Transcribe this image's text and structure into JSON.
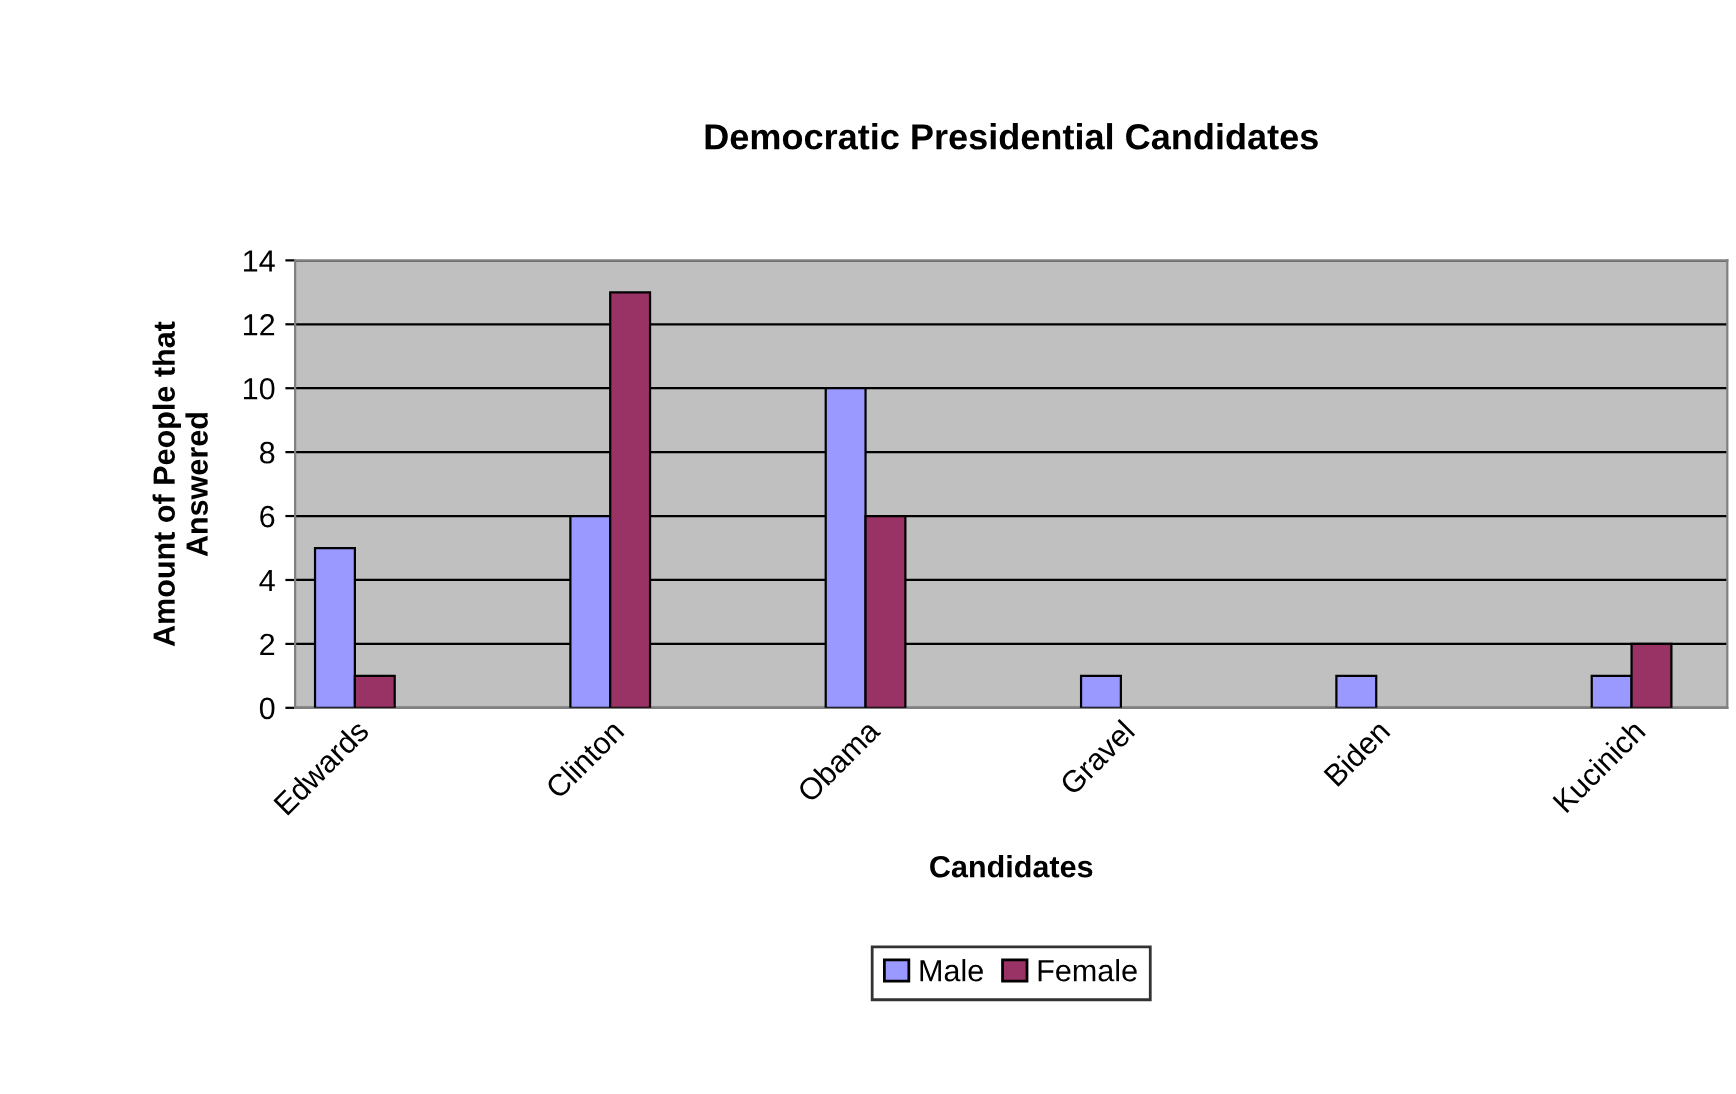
{
  "chart_data": {
    "type": "bar",
    "title": "Democratic Presidential Candidates",
    "xlabel": "Candidates",
    "ylabel": "Amount of People that\nAnswered",
    "categories": [
      "Edwards",
      "Clinton",
      "Obama",
      "Gravel",
      "Biden",
      "Kucinich"
    ],
    "series": [
      {
        "name": "Male",
        "color": "#9999ff",
        "values": [
          5,
          6,
          10,
          1,
          1,
          1
        ]
      },
      {
        "name": "Female",
        "color": "#993366",
        "values": [
          1,
          13,
          6,
          null,
          null,
          2
        ]
      }
    ],
    "ylim": [
      0,
      14
    ],
    "yticks": [
      0,
      2,
      4,
      6,
      8,
      10,
      12,
      14
    ],
    "grid": "y",
    "legend": "bottom"
  }
}
